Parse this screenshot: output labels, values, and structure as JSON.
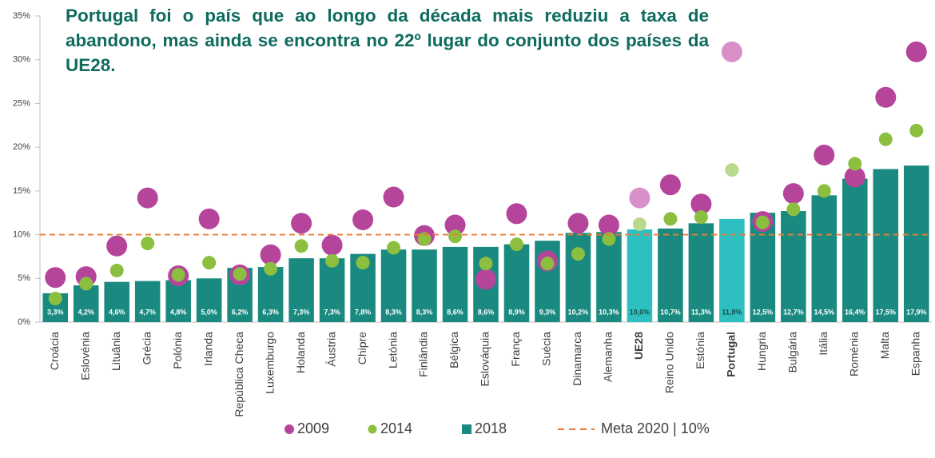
{
  "chart_data": {
    "type": "bar_dot",
    "title": "Portugal foi o país que ao longo da década mais reduziu a taxa de abandono, mas ainda se encontra no 22º lugar do conjunto dos países da UE28.",
    "categories": [
      "Croácia",
      "Eslovénia",
      "Lituânia",
      "Grécia",
      "Polónia",
      "Irlanda",
      "República Checa",
      "Luxemburgo",
      "Holanda",
      "Áustria",
      "Chipre",
      "Letónia",
      "Finlândia",
      "Bélgica",
      "Eslováquia",
      "França",
      "Suécia",
      "Dinamarca",
      "Alemanha",
      "UE28",
      "Reino Unido",
      "Estónia",
      "Portugal",
      "Hungria",
      "Bulgária",
      "Itália",
      "Roménia",
      "Malta",
      "Espanha"
    ],
    "highlight_indices": [
      19,
      22
    ],
    "series": [
      {
        "name": "2009",
        "mark": "circle",
        "color": "#b5459b",
        "highlight_color": "#d990c8",
        "values": [
          5.1,
          5.2,
          8.7,
          14.2,
          5.3,
          11.8,
          5.4,
          7.7,
          11.3,
          8.8,
          11.7,
          14.3,
          9.9,
          11.1,
          4.9,
          12.4,
          7.0,
          11.3,
          11.1,
          14.2,
          15.7,
          13.5,
          30.9,
          11.5,
          14.7,
          19.1,
          16.6,
          25.7,
          30.9
        ]
      },
      {
        "name": "2014",
        "mark": "dot",
        "color": "#8cbf3f",
        "highlight_color": "#b9da8c",
        "values": [
          2.7,
          4.4,
          5.9,
          9.0,
          5.4,
          6.8,
          5.5,
          6.1,
          8.7,
          7.0,
          6.8,
          8.5,
          9.5,
          9.8,
          6.7,
          8.9,
          6.7,
          7.8,
          9.5,
          11.2,
          11.8,
          12.0,
          17.4,
          11.4,
          12.9,
          15.0,
          18.1,
          20.9,
          21.9
        ]
      },
      {
        "name": "2018",
        "mark": "bar",
        "color": "#1a8a80",
        "highlight_color": "#2ec0c0",
        "values": [
          3.3,
          4.2,
          4.6,
          4.7,
          4.8,
          5.0,
          6.2,
          6.3,
          7.3,
          7.3,
          7.8,
          8.3,
          8.3,
          8.6,
          8.6,
          8.9,
          9.3,
          10.2,
          10.3,
          10.6,
          10.7,
          11.3,
          11.8,
          12.5,
          12.7,
          14.5,
          16.4,
          17.5,
          17.9
        ],
        "value_labels": [
          "3,3%",
          "4,2%",
          "4,6%",
          "4,7%",
          "4,8%",
          "5,0%",
          "6,2%",
          "6,3%",
          "7,3%",
          "7,3%",
          "7,8%",
          "8,3%",
          "8,3%",
          "8,6%",
          "8,6%",
          "8,9%",
          "9,3%",
          "10,2%",
          "10,3%",
          "10,6%",
          "10,7%",
          "11,3%",
          "11,8%",
          "12,5%",
          "12,7%",
          "14,5%",
          "16,4%",
          "17,5%",
          "17,9%"
        ]
      }
    ],
    "reference_line": {
      "name": "Meta 2020 | 10%",
      "value": 10,
      "color": "#ed7d31"
    },
    "ylim": [
      0,
      35
    ],
    "yticks": [
      {
        "value": 0,
        "label": "0%"
      },
      {
        "value": 5,
        "label": "5%"
      },
      {
        "value": 10,
        "label": "10%"
      },
      {
        "value": 15,
        "label": "15%"
      },
      {
        "value": 20,
        "label": "20%"
      },
      {
        "value": 25,
        "label": "25%"
      },
      {
        "value": 30,
        "label": "30%"
      },
      {
        "value": 35,
        "label": "35%"
      }
    ]
  }
}
